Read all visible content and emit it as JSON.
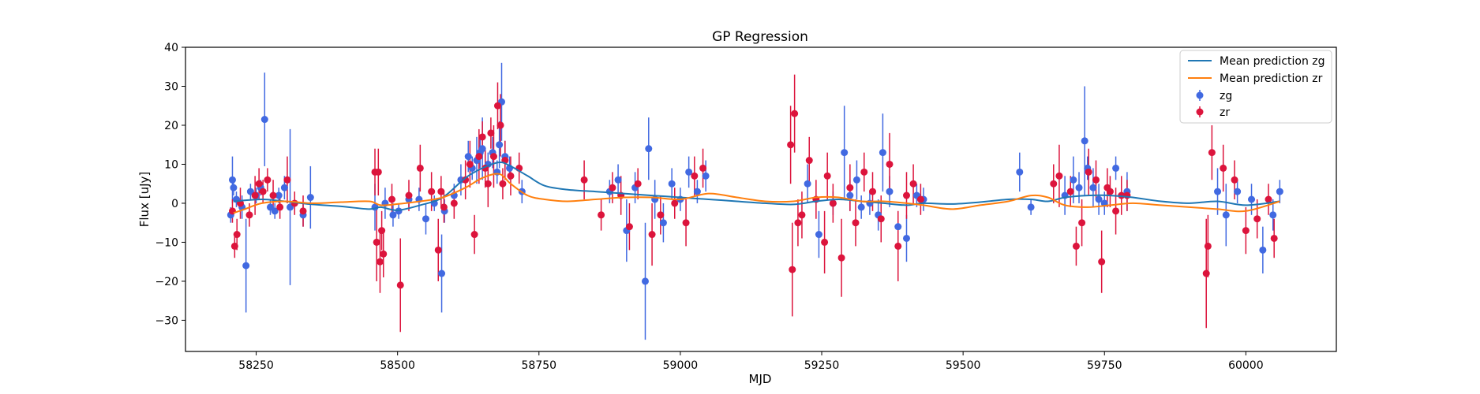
{
  "chart_data": {
    "type": "scatter",
    "title": "GP Regression",
    "xlabel": "MJD",
    "ylabel": "Flux [uJy]",
    "xlim": [
      58125,
      60160
    ],
    "ylim": [
      -38,
      40
    ],
    "xticks": [
      58250,
      58500,
      58750,
      59000,
      59250,
      59500,
      59750,
      60000
    ],
    "yticks": [
      -30,
      -20,
      -10,
      0,
      10,
      20,
      30,
      40
    ],
    "legend_position": "top-right",
    "colors": {
      "zg": "#4169e1",
      "zr": "#dc143c",
      "mean_zg": "#1f77b4",
      "mean_zr": "#ff7f0e"
    },
    "lines": [
      {
        "name": "Mean prediction zg",
        "x": [
          58210,
          58260,
          58300,
          58350,
          58400,
          58450,
          58470,
          58500,
          58540,
          58580,
          58620,
          58650,
          58680,
          58700,
          58730,
          58760,
          58800,
          58850,
          58900,
          58950,
          59000,
          59050,
          59100,
          59150,
          59200,
          59240,
          59280,
          59320,
          59360,
          59400,
          59430,
          59480,
          59530,
          59580,
          59620,
          59650,
          59680,
          59720,
          59760,
          59800,
          59850,
          59900,
          59950,
          60000,
          60060
        ],
        "y": [
          0.5,
          1.0,
          0.5,
          -0.3,
          -0.8,
          -1.5,
          -1.0,
          -1.8,
          -0.5,
          1.5,
          6.5,
          9.0,
          10.5,
          9.5,
          7.0,
          4.5,
          3.5,
          3.0,
          2.5,
          2.0,
          1.5,
          1.0,
          0.5,
          0.0,
          -0.3,
          0.5,
          1.0,
          0.5,
          0.0,
          -0.5,
          0.0,
          -0.2,
          0.3,
          1.0,
          1.0,
          0.5,
          1.5,
          2.0,
          2.0,
          1.5,
          0.5,
          0.0,
          0.5,
          -0.5,
          0.5
        ]
      },
      {
        "name": "Mean prediction zr",
        "x": [
          58210,
          58230,
          58260,
          58300,
          58350,
          58400,
          58450,
          58470,
          58500,
          58540,
          58580,
          58620,
          58650,
          58680,
          58700,
          58730,
          58760,
          58800,
          58850,
          58900,
          58950,
          59000,
          59050,
          59100,
          59150,
          59200,
          59240,
          59280,
          59320,
          59360,
          59400,
          59430,
          59480,
          59530,
          59580,
          59620,
          59650,
          59680,
          59720,
          59760,
          59800,
          59850,
          59900,
          59950,
          60000,
          60060
        ],
        "y": [
          -2.5,
          -1.5,
          0.0,
          0.5,
          0.0,
          0.3,
          0.5,
          -0.5,
          -0.2,
          0.5,
          1.5,
          4.0,
          6.5,
          7.5,
          5.0,
          2.0,
          1.0,
          0.5,
          1.0,
          1.5,
          1.5,
          1.0,
          2.5,
          1.5,
          0.5,
          0.5,
          1.5,
          1.5,
          0.5,
          0.5,
          0.0,
          -0.5,
          -1.5,
          -0.5,
          0.5,
          2.0,
          1.5,
          -0.5,
          -1.0,
          -0.5,
          0.0,
          -0.5,
          -1.0,
          -1.5,
          -2.0,
          0.5
        ]
      }
    ],
    "series": [
      {
        "name": "zg",
        "x": [
          58205,
          58208,
          58210,
          58215,
          58225,
          58232,
          58240,
          58250,
          58258,
          58265,
          58275,
          58283,
          58290,
          58300,
          58310,
          58333,
          58346,
          58460,
          58478,
          58492,
          58502,
          58520,
          58538,
          58550,
          58565,
          58578,
          58583,
          58600,
          58612,
          58625,
          58632,
          58640,
          58646,
          58650,
          58660,
          58668,
          58676,
          58680,
          58684,
          58690,
          58698,
          58720,
          58875,
          58890,
          58905,
          58920,
          58938,
          58944,
          58955,
          58970,
          58985,
          59000,
          59015,
          59030,
          59045,
          59225,
          59245,
          59270,
          59290,
          59300,
          59312,
          59320,
          59335,
          59350,
          59358,
          59370,
          59385,
          59400,
          59418,
          59430,
          59600,
          59620,
          59680,
          59695,
          59705,
          59715,
          59720,
          59730,
          59740,
          59750,
          59770,
          59790,
          59950,
          59965,
          59985,
          60010,
          60030,
          60048,
          60060
        ],
        "y": [
          -3,
          6,
          4,
          1,
          -1,
          -16,
          3,
          2,
          4,
          21.5,
          -1,
          -2,
          2,
          4,
          -1,
          -3,
          1.5,
          -1,
          0,
          -3,
          -2,
          1,
          1,
          -4,
          0,
          -18,
          -2,
          2,
          6,
          12,
          9,
          11,
          13,
          14,
          10,
          13,
          8,
          15,
          26,
          12,
          9,
          3,
          3,
          6,
          -7,
          4,
          -20,
          14,
          1,
          -5,
          5,
          1,
          8,
          3,
          7,
          5,
          -8,
          0,
          13,
          2,
          6,
          -1,
          0,
          -3,
          13,
          3,
          -6,
          -9,
          2,
          1,
          8,
          -1,
          2,
          6,
          4,
          16,
          9,
          4,
          1,
          0,
          9,
          3,
          3,
          -3,
          3,
          1,
          -12,
          -3,
          3
        ],
        "err": [
          2,
          6,
          2,
          2,
          3,
          12,
          2,
          2,
          2,
          12,
          2,
          2,
          2,
          3,
          20,
          3,
          8,
          6,
          4,
          3,
          2,
          2,
          3,
          4,
          2,
          10,
          3,
          3,
          4,
          4,
          3,
          6,
          4,
          8,
          3,
          4,
          3,
          6,
          10,
          4,
          3,
          3,
          3,
          4,
          8,
          4,
          15,
          8,
          5,
          5,
          4,
          3,
          4,
          3,
          4,
          5,
          6,
          3,
          12,
          4,
          5,
          3,
          3,
          4,
          10,
          4,
          4,
          6,
          3,
          3,
          5,
          2,
          5,
          6,
          4,
          14,
          3,
          5,
          4,
          3,
          3,
          5,
          6,
          8,
          3,
          4,
          6,
          4,
          3
        ]
      },
      {
        "name": "zr",
        "x": [
          58208,
          58212,
          58216,
          58222,
          58238,
          58248,
          58255,
          58262,
          58270,
          58280,
          58292,
          58305,
          58318,
          58333,
          58460,
          58463,
          58466,
          58469,
          58472,
          58475,
          58490,
          58505,
          58520,
          58540,
          58560,
          58572,
          58577,
          58582,
          58600,
          58620,
          58628,
          58636,
          58644,
          58650,
          58655,
          58660,
          58665,
          58670,
          58677,
          58682,
          58686,
          58690,
          58700,
          58715,
          58830,
          58860,
          58880,
          58895,
          58910,
          58925,
          58950,
          58965,
          58990,
          59010,
          59025,
          59040,
          59195,
          59198,
          59202,
          59208,
          59215,
          59228,
          59240,
          59255,
          59260,
          59270,
          59285,
          59300,
          59310,
          59325,
          59340,
          59355,
          59370,
          59385,
          59400,
          59412,
          59425,
          59660,
          59670,
          59690,
          59700,
          59710,
          59722,
          59735,
          59745,
          59755,
          59760,
          59770,
          59780,
          59790,
          59930,
          59933,
          59940,
          59960,
          59980,
          60000,
          60020,
          60040,
          60050
        ],
        "y": [
          -2,
          -11,
          -8,
          0,
          -3,
          2,
          5,
          3,
          6,
          2,
          -1,
          6,
          0,
          -2,
          8,
          -10,
          8,
          -15,
          -7,
          -13,
          1,
          -21,
          2,
          9,
          3,
          -12,
          3,
          -1,
          0,
          6,
          10,
          -8,
          12,
          17,
          9,
          5,
          18,
          12,
          25,
          20,
          5,
          11,
          7,
          9,
          6,
          -3,
          4,
          2,
          -6,
          5,
          -8,
          -3,
          0,
          -5,
          7,
          9,
          15,
          -17,
          23,
          -5,
          -3,
          11,
          1,
          -10,
          7,
          0,
          -14,
          4,
          -5,
          8,
          3,
          -4,
          10,
          -11,
          2,
          5,
          1,
          5,
          7,
          3,
          -11,
          -5,
          8,
          6,
          -15,
          4,
          3,
          -2,
          2,
          2,
          -18,
          -11,
          13,
          9,
          6,
          -7,
          -4,
          1,
          -9
        ],
        "err": [
          3,
          3,
          4,
          4,
          3,
          5,
          4,
          3,
          3,
          4,
          3,
          6,
          3,
          4,
          6,
          10,
          6,
          8,
          5,
          6,
          4,
          12,
          4,
          6,
          5,
          8,
          4,
          4,
          4,
          5,
          6,
          5,
          7,
          4,
          5,
          6,
          4,
          8,
          6,
          8,
          4,
          5,
          5,
          4,
          5,
          4,
          4,
          5,
          6,
          4,
          8,
          5,
          4,
          6,
          5,
          5,
          10,
          12,
          10,
          6,
          6,
          6,
          5,
          8,
          6,
          5,
          10,
          6,
          6,
          5,
          5,
          6,
          8,
          9,
          6,
          5,
          4,
          5,
          8,
          4,
          5,
          6,
          6,
          5,
          8,
          5,
          4,
          6,
          5,
          4,
          14,
          8,
          7,
          6,
          5,
          6,
          5,
          4,
          5
        ]
      }
    ],
    "legend": [
      "Mean prediction zg",
      "Mean prediction zr",
      "zg",
      "zr"
    ]
  }
}
